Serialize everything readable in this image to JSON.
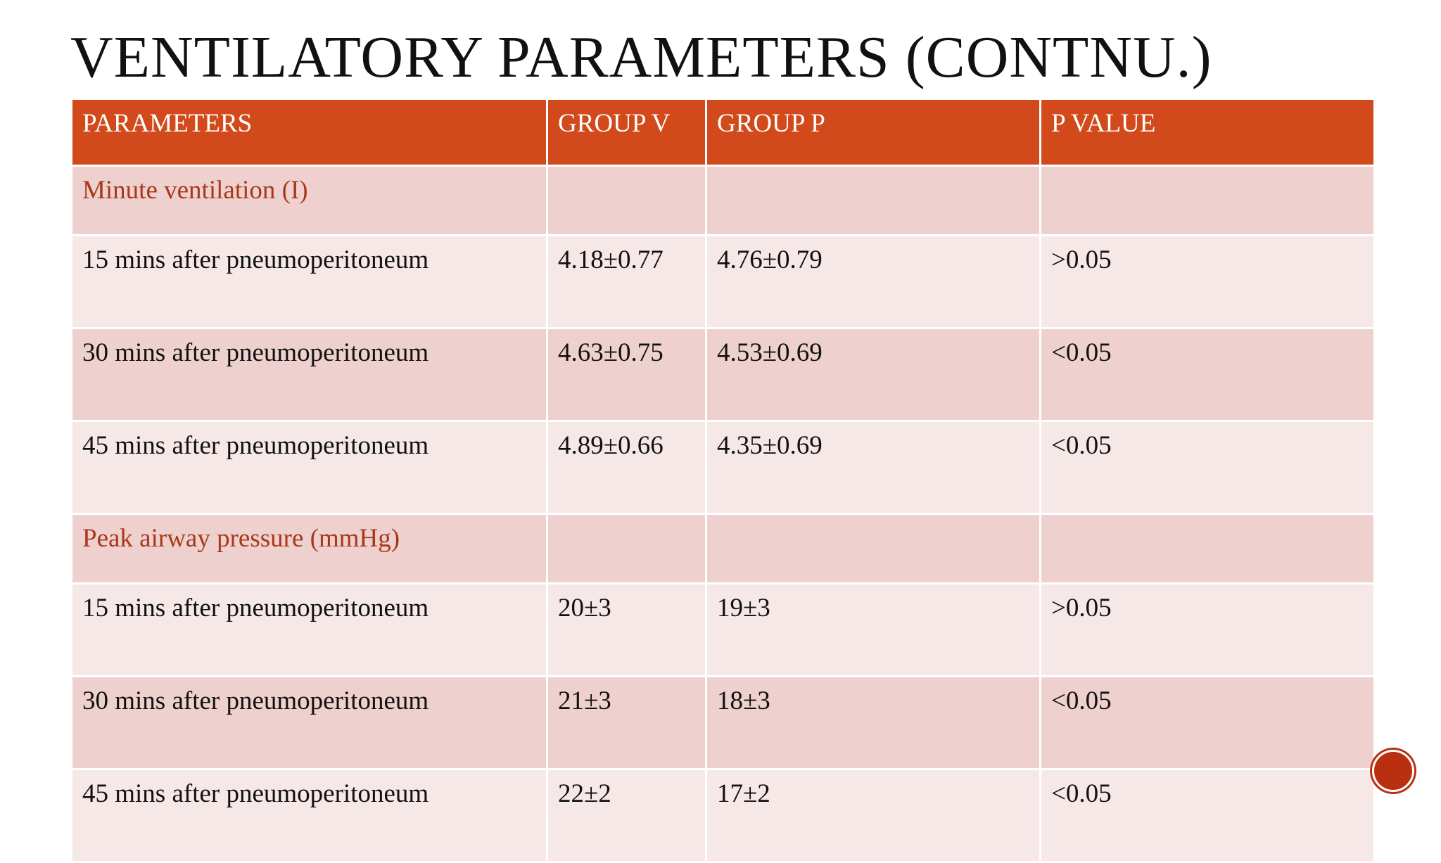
{
  "title": "VENTILATORY PARAMETERS (CONTNU.)",
  "table": {
    "headers": [
      "PARAMETERS",
      "GROUP V",
      "GROUP P",
      "P VALUE"
    ],
    "rows": [
      [
        "Minute ventilation (I)"
      ],
      [
        "15 mins after pneumoperitoneum",
        "4.18±0.77",
        "4.76±0.79",
        ">0.05"
      ],
      [
        "30 mins after pneumoperitoneum",
        "4.63±0.75",
        "4.53±0.69",
        "<0.05"
      ],
      [
        "45 mins after pneumoperitoneum",
        "4.89±0.66",
        "4.35±0.69",
        "<0.05"
      ],
      [
        "Peak airway pressure (mmHg)"
      ],
      [
        "15 mins after pneumoperitoneum",
        "20±3",
        "19±3",
        ">0.05"
      ],
      [
        "30 mins after pneumoperitoneum",
        "21±3",
        "18±3",
        "<0.05"
      ],
      [
        "45 mins after pneumoperitoneum",
        "22±2",
        "17±2",
        "<0.05"
      ]
    ]
  }
}
